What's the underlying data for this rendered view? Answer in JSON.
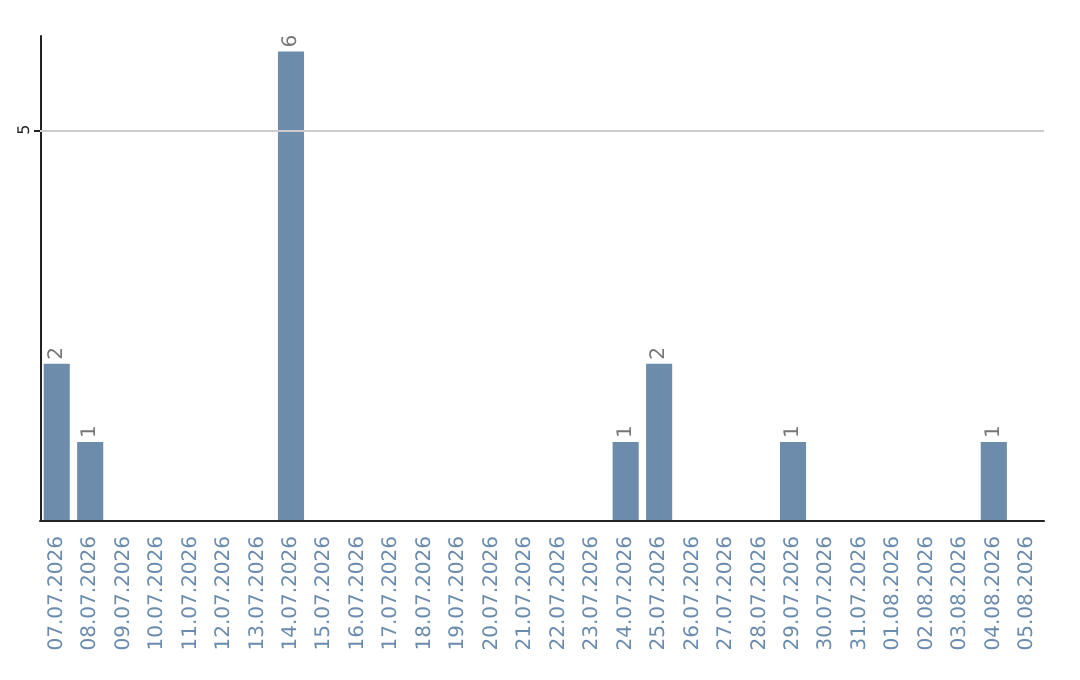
{
  "chart_data": {
    "type": "bar",
    "categories": [
      "07.07.2026",
      "08.07.2026",
      "09.07.2026",
      "10.07.2026",
      "11.07.2026",
      "12.07.2026",
      "13.07.2026",
      "14.07.2026",
      "15.07.2026",
      "16.07.2026",
      "17.07.2026",
      "18.07.2026",
      "19.07.2026",
      "20.07.2026",
      "21.07.2026",
      "22.07.2026",
      "23.07.2026",
      "24.07.2026",
      "25.07.2026",
      "26.07.2026",
      "27.07.2026",
      "28.07.2026",
      "29.07.2026",
      "30.07.2026",
      "31.07.2026",
      "01.08.2026",
      "02.08.2026",
      "03.08.2026",
      "04.08.2026",
      "05.08.2026"
    ],
    "values": [
      2,
      1,
      0,
      0,
      0,
      0,
      0,
      6,
      0,
      0,
      0,
      0,
      0,
      0,
      0,
      0,
      0,
      1,
      2,
      0,
      0,
      0,
      1,
      0,
      0,
      0,
      0,
      0,
      1,
      0
    ],
    "value_labels": [
      "2",
      "1",
      null,
      null,
      null,
      null,
      null,
      "6",
      null,
      null,
      null,
      null,
      null,
      null,
      null,
      null,
      null,
      "1",
      "2",
      null,
      null,
      null,
      "1",
      null,
      null,
      null,
      null,
      null,
      "1",
      null
    ],
    "color": "#6d8bab",
    "ylim": [
      0,
      6.2
    ],
    "yticks": [
      5
    ],
    "grid": "y"
  }
}
